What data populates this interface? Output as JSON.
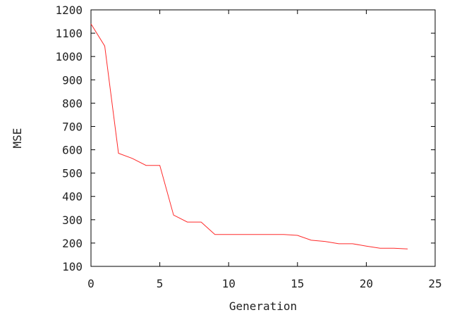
{
  "chart_data": {
    "type": "line",
    "title": "",
    "xlabel": "Generation",
    "ylabel": "MSE",
    "xlim": [
      0,
      25
    ],
    "ylim": [
      100,
      1200
    ],
    "xticks": [
      0,
      5,
      10,
      15,
      20,
      25
    ],
    "yticks": [
      100,
      200,
      300,
      400,
      500,
      600,
      700,
      800,
      900,
      1000,
      1100,
      1200
    ],
    "grid": false,
    "legend": "none",
    "series": [
      {
        "color": "#ff2a2a",
        "x": [
          0,
          1,
          2,
          3,
          4,
          5,
          6,
          7,
          8,
          9,
          10,
          11,
          12,
          13,
          14,
          15,
          16,
          17,
          18,
          19,
          20,
          21,
          22,
          23
        ],
        "y": [
          1140,
          1045,
          585,
          563,
          533,
          533,
          320,
          290,
          290,
          237,
          237,
          237,
          237,
          237,
          237,
          233,
          212,
          207,
          197,
          197,
          187,
          178,
          178,
          175
        ]
      }
    ]
  }
}
